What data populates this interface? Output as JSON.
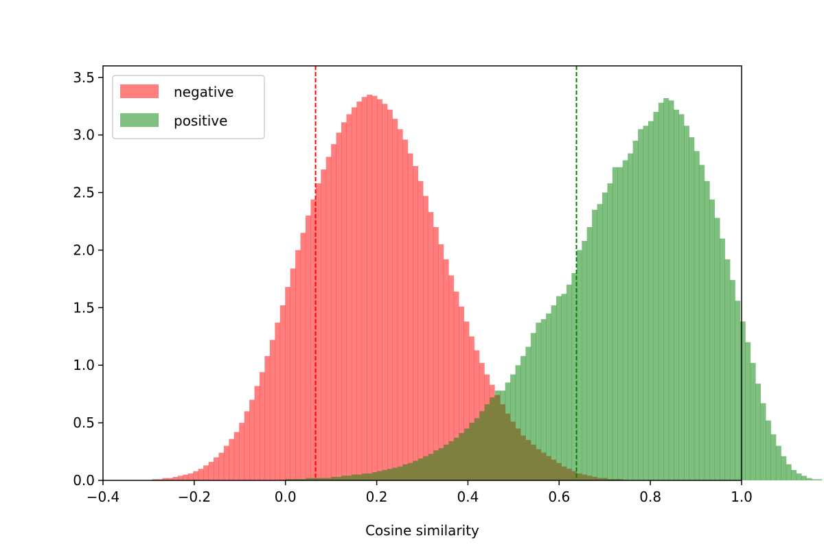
{
  "chart_data": {
    "type": "bar",
    "subtype": "histogram",
    "title": "",
    "xlabel": "Cosine similarity",
    "ylabel": "",
    "xlim": [
      -0.4,
      1.0
    ],
    "ylim": [
      0,
      3.6
    ],
    "xticks": [
      -0.4,
      -0.2,
      0.0,
      0.2,
      0.4,
      0.6,
      0.8,
      1.0
    ],
    "xtick_labels": [
      "−0.4",
      "−0.2",
      "0.0",
      "0.2",
      "0.4",
      "0.6",
      "0.8",
      "1.0"
    ],
    "yticks": [
      0.0,
      0.5,
      1.0,
      1.5,
      2.0,
      2.5,
      3.0,
      3.5
    ],
    "ytick_labels": [
      "0.0",
      "0.5",
      "1.0",
      "1.5",
      "2.0",
      "2.5",
      "3.0",
      "3.5"
    ],
    "grid": false,
    "legend_position": "top-left",
    "bin_width": 0.0112,
    "series": [
      {
        "name": "negative",
        "color": "#ff0000",
        "alpha": 0.5,
        "mean": 0.066,
        "mean_line_color": "#ff0000",
        "bin_start": -0.292,
        "values": [
          0.01,
          0.01,
          0.02,
          0.02,
          0.03,
          0.04,
          0.05,
          0.06,
          0.08,
          0.1,
          0.13,
          0.16,
          0.2,
          0.24,
          0.3,
          0.36,
          0.42,
          0.5,
          0.6,
          0.7,
          0.82,
          0.94,
          1.08,
          1.22,
          1.37,
          1.52,
          1.68,
          1.84,
          2.0,
          2.15,
          2.3,
          2.44,
          2.58,
          2.7,
          2.81,
          2.92,
          3.02,
          3.11,
          3.18,
          3.24,
          3.29,
          3.33,
          3.35,
          3.34,
          3.31,
          3.27,
          3.22,
          3.14,
          3.05,
          2.96,
          2.84,
          2.73,
          2.6,
          2.47,
          2.33,
          2.2,
          2.05,
          1.92,
          1.78,
          1.64,
          1.51,
          1.38,
          1.25,
          1.13,
          1.02,
          0.92,
          0.83,
          0.74,
          0.66,
          0.58,
          0.51,
          0.45,
          0.39,
          0.35,
          0.31,
          0.27,
          0.24,
          0.21,
          0.18,
          0.15,
          0.12,
          0.1,
          0.08,
          0.06,
          0.05,
          0.04,
          0.03,
          0.02,
          0.02,
          0.01,
          0.01,
          0.01
        ]
      },
      {
        "name": "positive",
        "color": "#008000",
        "alpha": 0.5,
        "mean": 0.638,
        "mean_line_color": "#008000",
        "bin_start": 0.0,
        "values": [
          0.01,
          0.01,
          0.01,
          0.01,
          0.02,
          0.02,
          0.02,
          0.02,
          0.02,
          0.03,
          0.03,
          0.04,
          0.04,
          0.05,
          0.05,
          0.06,
          0.06,
          0.07,
          0.08,
          0.09,
          0.1,
          0.11,
          0.12,
          0.14,
          0.15,
          0.17,
          0.19,
          0.21,
          0.23,
          0.26,
          0.28,
          0.31,
          0.34,
          0.37,
          0.41,
          0.45,
          0.5,
          0.54,
          0.6,
          0.66,
          0.72,
          0.78,
          0.78,
          0.85,
          0.92,
          1.0,
          1.08,
          1.16,
          1.28,
          1.37,
          1.4,
          1.45,
          1.52,
          1.6,
          1.62,
          1.7,
          1.8,
          2.0,
          2.08,
          2.2,
          2.35,
          2.4,
          2.5,
          2.58,
          2.72,
          2.72,
          2.78,
          2.84,
          2.95,
          3.05,
          3.08,
          3.12,
          3.2,
          3.28,
          3.32,
          3.3,
          3.22,
          3.18,
          3.08,
          2.98,
          2.86,
          2.74,
          2.6,
          2.44,
          2.28,
          2.1,
          1.92,
          1.74,
          1.56,
          1.38,
          1.2,
          1.02,
          0.84,
          0.67,
          0.52,
          0.4,
          0.3,
          0.21,
          0.14,
          0.09,
          0.06,
          0.04,
          0.02,
          0.01,
          0.01
        ]
      }
    ]
  }
}
